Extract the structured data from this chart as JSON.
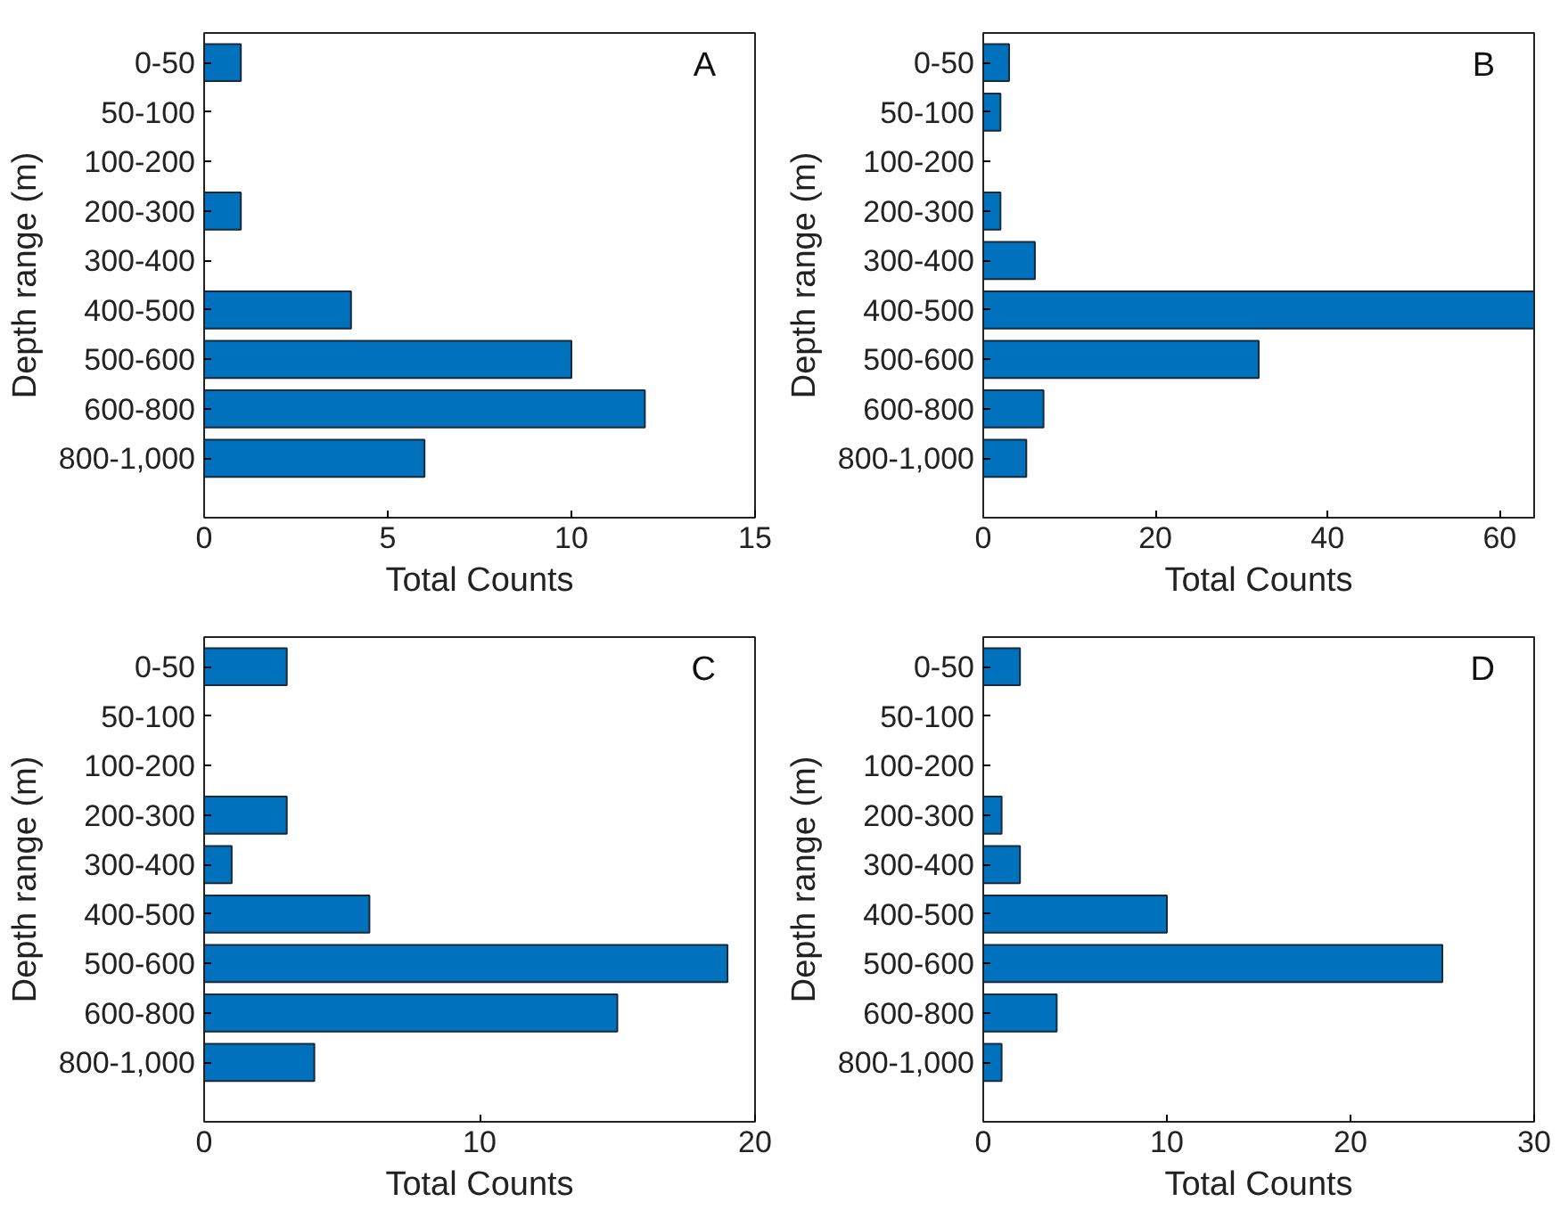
{
  "chart_data": [
    {
      "type": "bar",
      "orientation": "horizontal",
      "ylabel": "Depth range (m)",
      "xlabel": "Total Counts",
      "annotations": [
        "A"
      ],
      "categories": [
        "0-50",
        "50-100",
        "100-200",
        "200-300",
        "300-400",
        "400-500",
        "500-600",
        "600-800",
        "800-1,000"
      ],
      "color": "#0072bd",
      "values": [
        1,
        0,
        0,
        1,
        0,
        4,
        10,
        12,
        6
      ],
      "xlim": [
        0,
        15
      ],
      "xticks": [
        0,
        5,
        10,
        15
      ],
      "grid": false
    },
    {
      "type": "bar",
      "orientation": "horizontal",
      "ylabel": "Depth range (m)",
      "xlabel": "Total Counts",
      "annotations": [
        "B"
      ],
      "categories": [
        "0-50",
        "50-100",
        "100-200",
        "200-300",
        "300-400",
        "400-500",
        "500-600",
        "600-800",
        "800-1,000"
      ],
      "color": "#0072bd",
      "values": [
        3,
        2,
        0,
        2,
        6,
        64,
        32,
        7,
        5
      ],
      "xlim": [
        0,
        64
      ],
      "xticks": [
        0,
        20,
        40,
        60
      ],
      "grid": false
    },
    {
      "type": "bar",
      "orientation": "horizontal",
      "ylabel": "Depth range (m)",
      "xlabel": "Total Counts",
      "annotations": [
        "C"
      ],
      "categories": [
        "0-50",
        "50-100",
        "100-200",
        "200-300",
        "300-400",
        "400-500",
        "500-600",
        "600-800",
        "800-1,000"
      ],
      "color": "#0072bd",
      "values": [
        3,
        0,
        0,
        3,
        1,
        6,
        19,
        15,
        4
      ],
      "xlim": [
        0,
        20
      ],
      "xticks": [
        0,
        10,
        20
      ],
      "grid": false
    },
    {
      "type": "bar",
      "orientation": "horizontal",
      "ylabel": "Depth range (m)",
      "xlabel": "Total Counts",
      "annotations": [
        "D"
      ],
      "categories": [
        "0-50",
        "50-100",
        "100-200",
        "200-300",
        "300-400",
        "400-500",
        "500-600",
        "600-800",
        "800-1,000"
      ],
      "color": "#0072bd",
      "values": [
        2,
        0,
        0,
        1,
        2,
        10,
        25,
        4,
        1
      ],
      "xlim": [
        0,
        30
      ],
      "xticks": [
        0,
        10,
        20,
        30
      ],
      "grid": false
    }
  ]
}
